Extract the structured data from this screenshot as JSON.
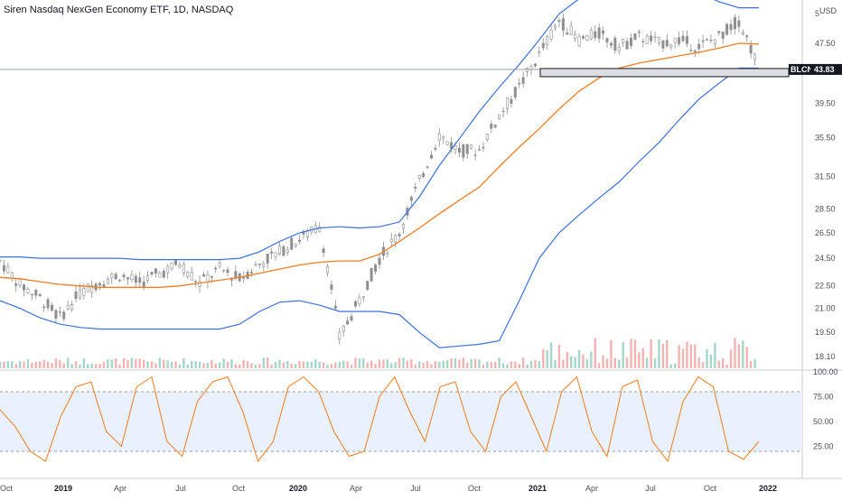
{
  "chart_data": {
    "type": "line",
    "title": "Siren Nasdaq NexGen Economy ETF, 1D, NASDAQ",
    "currency": "USD",
    "colors": {
      "bollinger": "#3d6fe0",
      "moving_average": "#f57c1f",
      "stochastic": "#f57c1f",
      "candle_up": "#8f8f8f",
      "candle_down": "#8f8f8f",
      "vol_up": "#a5d6c9",
      "vol_down": "#f3b3b3",
      "band_fill": "#e8f1fd"
    },
    "x_labels": [
      "Oct",
      "2019",
      "Apr",
      "Jul",
      "Oct",
      "2020",
      "Apr",
      "Jul",
      "Oct",
      "2021",
      "Apr",
      "Jul",
      "Oct",
      "2022"
    ],
    "x_label_major": [
      false,
      true,
      false,
      false,
      false,
      true,
      false,
      false,
      false,
      true,
      false,
      false,
      false,
      true
    ],
    "price_axis": {
      "ticks": [
        "18.10",
        "19.50",
        "21.00",
        "22.50",
        "24.50",
        "26.50",
        "28.50",
        "31.50",
        "35.50",
        "39.50",
        "47.50",
        "5"
      ],
      "scale": "log"
    },
    "last_price": {
      "symbol": "BLCN",
      "value": "43.83"
    },
    "price_series": {
      "dates": [
        "2018-10",
        "2018-11",
        "2018-12",
        "2019-01",
        "2019-02",
        "2019-03",
        "2019-04",
        "2019-05",
        "2019-06",
        "2019-07",
        "2019-08",
        "2019-09",
        "2019-10",
        "2019-11",
        "2019-12",
        "2020-01",
        "2020-02",
        "2020-03",
        "2020-04",
        "2020-05",
        "2020-06",
        "2020-07",
        "2020-08",
        "2020-09",
        "2020-10",
        "2020-11",
        "2020-12",
        "2021-01",
        "2021-02",
        "2021-03",
        "2021-04",
        "2021-05",
        "2021-06",
        "2021-07",
        "2021-08",
        "2021-09",
        "2021-10",
        "2021-11",
        "2021-12"
      ],
      "close": [
        24.3,
        22.6,
        21.7,
        20.4,
        22.0,
        22.8,
        23.3,
        22.7,
        23.4,
        24.1,
        22.7,
        23.7,
        23.0,
        24.1,
        25.0,
        26.0,
        27.0,
        19.2,
        21.5,
        24.5,
        26.5,
        31.0,
        35.8,
        34.1,
        34.2,
        38.0,
        41.5,
        45.8,
        51.0,
        48.0,
        49.0,
        47.0,
        48.5,
        47.5,
        48.0,
        47.0,
        48.5,
        51.0,
        44.0
      ],
      "ma": [
        23.1,
        23.0,
        22.8,
        22.6,
        22.5,
        22.4,
        22.4,
        22.4,
        22.4,
        22.5,
        22.7,
        22.9,
        23.1,
        23.4,
        23.7,
        24.0,
        24.2,
        24.3,
        24.3,
        24.8,
        25.8,
        26.9,
        28.1,
        29.3,
        30.5,
        32.5,
        34.5,
        36.5,
        38.8,
        41.0,
        42.7,
        44.0,
        44.7,
        45.2,
        45.7,
        46.2,
        46.8,
        47.5,
        47.4
      ],
      "bb_upper": [
        24.6,
        24.6,
        24.5,
        24.5,
        24.5,
        24.5,
        24.5,
        24.4,
        24.4,
        24.4,
        24.4,
        24.4,
        24.5,
        25.0,
        25.8,
        26.5,
        26.9,
        27.0,
        26.9,
        27.0,
        27.4,
        29.6,
        32.6,
        35.4,
        38.5,
        41.5,
        44.5,
        48.0,
        52.0,
        54.5,
        55.5,
        56.5,
        57.0,
        57.0,
        56.5,
        55.5,
        54.0,
        53.0,
        53.0
      ],
      "bb_lower": [
        21.5,
        21.0,
        20.4,
        20.0,
        19.8,
        19.7,
        19.7,
        19.7,
        19.7,
        19.7,
        19.7,
        19.7,
        20.0,
        20.8,
        21.4,
        21.5,
        21.2,
        20.8,
        20.8,
        20.8,
        20.6,
        19.5,
        18.6,
        18.7,
        18.8,
        19.0,
        21.5,
        24.5,
        26.5,
        28.0,
        29.5,
        31.0,
        33.0,
        35.0,
        37.5,
        40.0,
        42.0,
        44.0,
        44.0
      ]
    },
    "volume_note": "volume bars",
    "stochastic": {
      "ticks": [
        "100.00",
        "75.00",
        "50.00",
        "25.00"
      ],
      "upper_band": 80,
      "lower_band": 20,
      "values": [
        62,
        45,
        20,
        10,
        55,
        85,
        90,
        40,
        25,
        85,
        95,
        30,
        15,
        70,
        90,
        95,
        60,
        10,
        30,
        85,
        95,
        80,
        40,
        15,
        20,
        75,
        95,
        60,
        30,
        85,
        90,
        40,
        20,
        75,
        90,
        55,
        20,
        80,
        95,
        40,
        15,
        85,
        92,
        30,
        10,
        70,
        95,
        85,
        20,
        12,
        30
      ]
    }
  }
}
